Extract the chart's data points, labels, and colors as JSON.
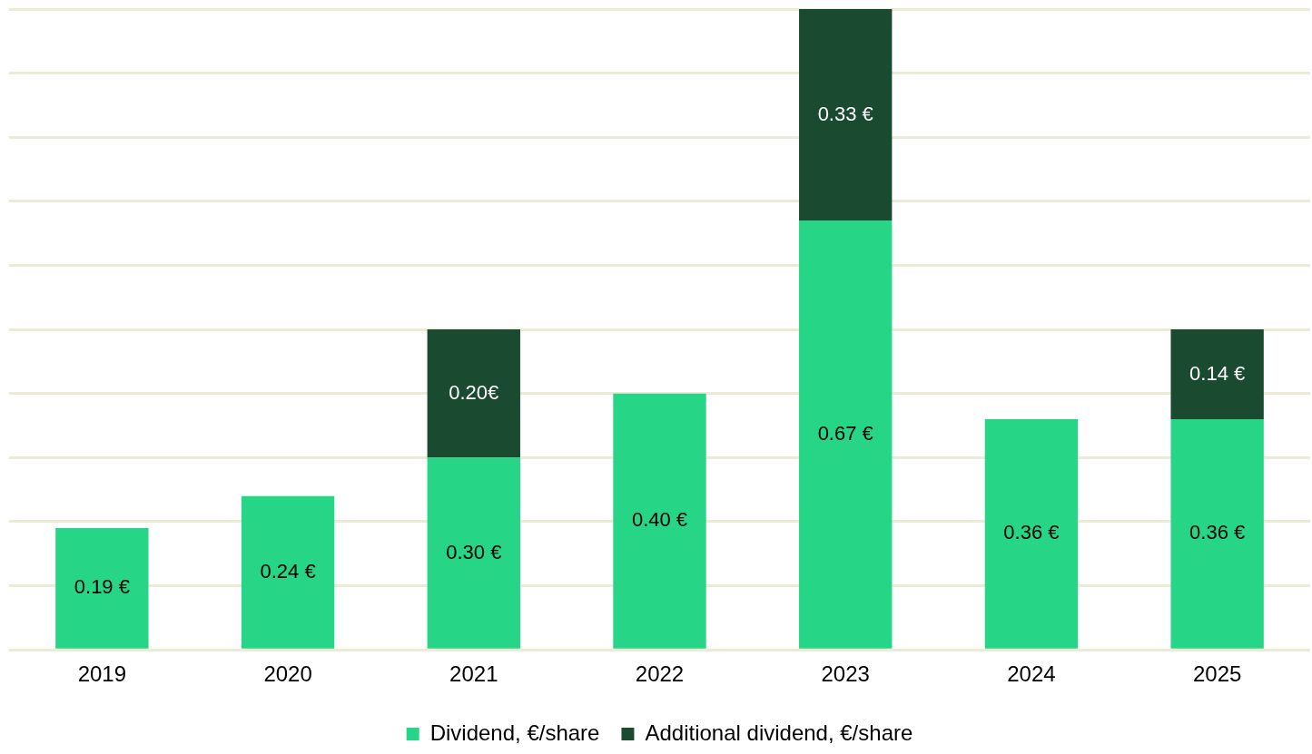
{
  "chart_data": {
    "type": "bar",
    "stacked": true,
    "categories": [
      "2019",
      "2020",
      "2021",
      "2022",
      "2023",
      "2024",
      "2025"
    ],
    "series": [
      {
        "name": "Dividend, €/share",
        "color": "#26d585",
        "values": [
          0.19,
          0.24,
          0.3,
          0.4,
          0.67,
          0.36,
          0.36
        ],
        "value_labels": [
          "0.19 €",
          "0.24 €",
          "0.30 €",
          "0.40 €",
          "0.67 €",
          "0.36 €",
          "0.36 €"
        ]
      },
      {
        "name": "Additional dividend, €/share",
        "color": "#1a4a30",
        "values": [
          null,
          null,
          0.2,
          null,
          0.33,
          null,
          0.14
        ],
        "value_labels": [
          null,
          null,
          "0.20€",
          null,
          "0.33 €",
          null,
          "0.14 €"
        ]
      }
    ],
    "ylim": [
      0,
      1.0
    ],
    "yticks": [
      {
        "value": 0,
        "label": null
      },
      {
        "value": 0.1,
        "label": null
      },
      {
        "value": 0.2,
        "label": null
      },
      {
        "value": 0.3,
        "label": null
      },
      {
        "value": 0.4,
        "label": null
      },
      {
        "value": 0.5,
        "label": null
      },
      {
        "value": 0.6,
        "label": null
      },
      {
        "value": 0.7,
        "label": null
      },
      {
        "value": 0.8,
        "label": null
      },
      {
        "value": 0.9,
        "label": null
      },
      {
        "value": 1.0,
        "label": null
      }
    ],
    "grid": "y",
    "tick_labels": "x",
    "legend": "bottom"
  }
}
